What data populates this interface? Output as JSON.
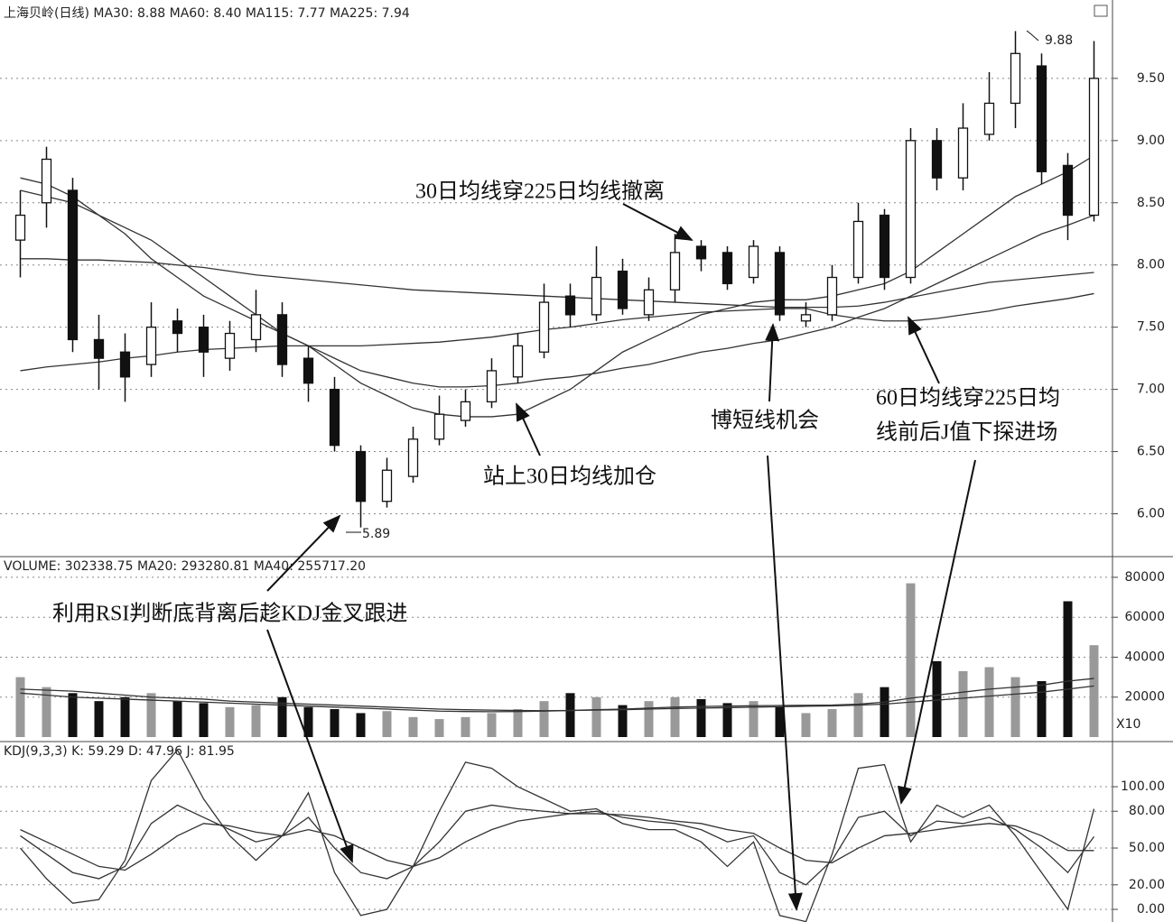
{
  "chart_data": [
    {
      "type": "candlestick",
      "title": "上海贝岭(日线) MA30: 8.88 MA60: 8.40 MA115: 7.77 MA225: 7.94",
      "open": [
        8.2,
        8.5,
        8.6,
        7.4,
        7.3,
        7.2,
        7.55,
        7.5,
        7.25,
        7.4,
        7.6,
        7.25,
        7.0,
        6.5,
        6.1,
        6.3,
        6.6,
        6.75,
        6.9,
        7.1,
        7.3,
        7.75,
        7.6,
        7.95,
        7.6,
        7.8,
        8.15,
        8.1,
        7.9,
        8.1,
        7.55,
        7.6,
        7.9,
        8.4,
        7.9,
        9.0,
        8.7,
        9.05,
        9.3,
        9.6,
        8.8,
        8.4
      ],
      "high": [
        8.6,
        8.95,
        8.7,
        7.6,
        7.45,
        7.7,
        7.65,
        7.6,
        7.55,
        7.8,
        7.7,
        7.35,
        7.1,
        6.55,
        6.45,
        6.7,
        6.95,
        7.0,
        7.25,
        7.45,
        7.85,
        7.85,
        8.15,
        8.05,
        7.9,
        8.25,
        8.2,
        8.15,
        8.2,
        8.15,
        7.7,
        8.0,
        8.5,
        8.45,
        9.1,
        9.1,
        9.3,
        9.55,
        9.88,
        9.7,
        8.9,
        9.8
      ],
      "low": [
        7.9,
        8.3,
        7.3,
        7.0,
        6.9,
        7.1,
        7.3,
        7.1,
        7.15,
        7.3,
        7.1,
        6.9,
        6.5,
        5.89,
        6.05,
        6.25,
        6.55,
        6.7,
        6.85,
        7.05,
        7.25,
        7.5,
        7.55,
        7.6,
        7.55,
        7.7,
        7.95,
        7.8,
        7.85,
        7.55,
        7.5,
        7.55,
        7.85,
        7.8,
        7.85,
        8.6,
        8.6,
        9.0,
        9.1,
        8.65,
        8.2,
        8.35
      ],
      "close": [
        8.4,
        8.85,
        7.4,
        7.25,
        7.1,
        7.5,
        7.45,
        7.3,
        7.45,
        7.6,
        7.2,
        7.05,
        6.55,
        6.1,
        6.35,
        6.6,
        6.8,
        6.9,
        7.15,
        7.35,
        7.7,
        7.6,
        7.9,
        7.65,
        7.8,
        8.1,
        8.05,
        7.85,
        8.15,
        7.6,
        7.6,
        7.9,
        8.35,
        7.9,
        9.0,
        8.7,
        9.1,
        9.3,
        9.7,
        8.75,
        8.4,
        9.5
      ],
      "series": [
        {
          "color": "#333",
          "values": [
            8.7,
            8.65,
            8.55,
            8.4,
            8.25,
            8.05,
            7.9,
            7.75,
            7.65,
            7.55,
            7.45,
            7.35,
            7.2,
            7.05,
            6.95,
            6.85,
            6.8,
            6.78,
            6.78,
            6.8,
            6.9,
            7.0,
            7.15,
            7.3,
            7.4,
            7.5,
            7.6,
            7.65,
            7.7,
            7.72,
            7.72,
            7.75,
            7.8,
            7.85,
            7.95,
            8.1,
            8.25,
            8.4,
            8.55,
            8.65,
            8.75,
            8.88
          ]
        },
        {
          "color": "#333",
          "values": [
            8.6,
            8.55,
            8.5,
            8.4,
            8.3,
            8.2,
            8.05,
            7.9,
            7.75,
            7.6,
            7.45,
            7.35,
            7.25,
            7.15,
            7.1,
            7.05,
            7.02,
            7.02,
            7.03,
            7.05,
            7.08,
            7.1,
            7.13,
            7.17,
            7.2,
            7.25,
            7.3,
            7.33,
            7.37,
            7.4,
            7.45,
            7.5,
            7.58,
            7.65,
            7.75,
            7.85,
            7.95,
            8.05,
            8.15,
            8.25,
            8.32,
            8.4
          ]
        },
        {
          "color": "#333",
          "values": [
            7.15,
            7.18,
            7.2,
            7.22,
            7.25,
            7.27,
            7.3,
            7.32,
            7.33,
            7.34,
            7.35,
            7.35,
            7.35,
            7.35,
            7.36,
            7.37,
            7.38,
            7.4,
            7.42,
            7.45,
            7.48,
            7.5,
            7.53,
            7.56,
            7.58,
            7.6,
            7.62,
            7.63,
            7.64,
            7.65,
            7.65,
            7.6,
            7.57,
            7.55,
            7.55,
            7.57,
            7.6,
            7.63,
            7.67,
            7.7,
            7.73,
            7.77
          ]
        },
        {
          "color": "#333",
          "values": [
            8.05,
            8.05,
            8.04,
            8.04,
            8.03,
            8.02,
            8.0,
            7.98,
            7.95,
            7.92,
            7.9,
            7.88,
            7.86,
            7.84,
            7.82,
            7.8,
            7.79,
            7.78,
            7.77,
            7.76,
            7.75,
            7.74,
            7.73,
            7.72,
            7.71,
            7.7,
            7.69,
            7.68,
            7.67,
            7.66,
            7.66,
            7.66,
            7.67,
            7.7,
            7.74,
            7.78,
            7.82,
            7.86,
            7.88,
            7.9,
            7.92,
            7.94
          ]
        }
      ],
      "ylim": [
        5.67,
        10.13
      ],
      "yticks": [
        {
          "value": 6,
          "label": "6.00"
        },
        {
          "value": 6.5,
          "label": "6.50"
        },
        {
          "value": 7,
          "label": "7.00"
        },
        {
          "value": 7.5,
          "label": "7.50"
        },
        {
          "value": 8,
          "label": "8.00"
        },
        {
          "value": 8.5,
          "label": "8.50"
        },
        {
          "value": 9,
          "label": "9.00"
        },
        {
          "value": 9.5,
          "label": "9.50"
        }
      ],
      "grid": true,
      "annotations": [
        "9.88",
        "5.89",
        "30日均线穿225日均线撤离",
        "站上30日均线加仓",
        "博短线机会",
        "60日均线穿225日均",
        "线前后J值下探进场",
        "利用RSI判断底背离后趁KDJ金叉跟进"
      ]
    },
    {
      "type": "bar",
      "title": "VOLUME: 302338.75 MA20: 293280.81 MA40: 255717.20",
      "values": [
        30000,
        25000,
        22000,
        18000,
        20000,
        22000,
        18000,
        17000,
        15000,
        16000,
        20000,
        15000,
        14000,
        12000,
        13000,
        10000,
        9000,
        10000,
        12000,
        14000,
        18000,
        22000,
        20000,
        16000,
        18000,
        20000,
        19000,
        17000,
        18000,
        15000,
        12000,
        14000,
        22000,
        25000,
        77000,
        38000,
        33000,
        35000,
        30000,
        28000,
        68000,
        46000
      ],
      "series": [
        {
          "color": "#333",
          "values": [
            22000,
            21000,
            20000,
            19500,
            19000,
            18500,
            18000,
            17500,
            17000,
            16500,
            16000,
            15500,
            15000,
            14500,
            14000,
            13500,
            13000,
            12800,
            12700,
            12800,
            13000,
            13300,
            13700,
            14000,
            14500,
            15000,
            15300,
            15500,
            15700,
            15800,
            15900,
            16000,
            16500,
            17500,
            19500,
            21000,
            22500,
            24000,
            25000,
            26000,
            28000,
            29328
          ]
        },
        {
          "color": "#333",
          "values": [
            24000,
            23500,
            23000,
            22000,
            21000,
            20000,
            19500,
            19000,
            18000,
            17500,
            17000,
            16500,
            16000,
            15500,
            15000,
            14500,
            14000,
            13700,
            13500,
            13300,
            13200,
            13300,
            13500,
            13700,
            14000,
            14300,
            14500,
            14700,
            15000,
            15200,
            15400,
            15600,
            16000,
            16500,
            17500,
            18500,
            19500,
            20500,
            21500,
            22500,
            24000,
            25572
          ]
        }
      ],
      "up_color": "#999",
      "down_color": "#111",
      "ylim": [
        0,
        89000
      ],
      "yticks": [
        20000,
        40000,
        60000,
        80000
      ],
      "grid": true,
      "unit_label": "X10"
    },
    {
      "type": "line",
      "title": "KDJ(9,3,3) K: 59.29 D: 47.96 J: 81.95",
      "series": [
        {
          "color": "#333",
          "values": [
            60,
            45,
            30,
            25,
            35,
            70,
            85,
            75,
            65,
            55,
            60,
            75,
            50,
            30,
            25,
            35,
            55,
            80,
            85,
            82,
            80,
            78,
            80,
            75,
            72,
            70,
            65,
            55,
            60,
            30,
            20,
            40,
            75,
            80,
            60,
            72,
            70,
            75,
            65,
            50,
            30,
            59.29
          ]
        },
        {
          "color": "#333",
          "values": [
            65,
            55,
            45,
            35,
            32,
            45,
            60,
            70,
            68,
            63,
            60,
            65,
            60,
            50,
            40,
            35,
            42,
            55,
            65,
            72,
            75,
            78,
            78,
            77,
            75,
            72,
            70,
            65,
            62,
            50,
            40,
            38,
            50,
            60,
            62,
            65,
            68,
            70,
            68,
            60,
            48,
            47.96
          ]
        },
        {
          "color": "#333",
          "values": [
            50,
            25,
            5,
            8,
            40,
            105,
            130,
            90,
            60,
            40,
            60,
            95,
            30,
            -5,
            0,
            35,
            80,
            120,
            115,
            100,
            90,
            80,
            82,
            70,
            65,
            65,
            55,
            35,
            55,
            -5,
            -10,
            45,
            115,
            118,
            55,
            85,
            75,
            85,
            60,
            30,
            0,
            81.95
          ]
        }
      ],
      "ylim": [
        -10.3,
        134.6
      ],
      "yticks": [
        {
          "value": 0,
          "label": "0.00"
        },
        {
          "value": 20,
          "label": "20.00"
        },
        {
          "value": 50,
          "label": "50.00"
        },
        {
          "value": 80,
          "label": "80.00"
        },
        {
          "value": 100,
          "label": "100.00"
        }
      ],
      "grid": true
    }
  ]
}
